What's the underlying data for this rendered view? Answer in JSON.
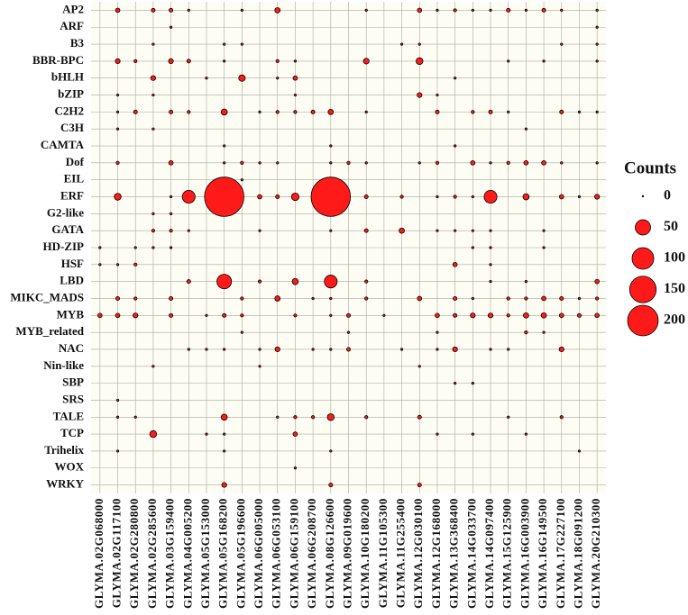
{
  "chart_data": {
    "type": "bubble",
    "x": [
      "GLYMA.02G068000",
      "GLYMA.02G117100",
      "GLYMA.02G280800",
      "GLYMA.02G285600",
      "GLYMA.03G159400",
      "GLYMA.04G005200",
      "GLYMA.05G153000",
      "GLYMA.05G168200",
      "GLYMA.05G196600",
      "GLYMA.06G005000",
      "GLYMA.06G053100",
      "GLYMA.06G159100",
      "GLYMA.06G208700",
      "GLYMA.08G126600",
      "GLYMA.09G019600",
      "GLYMA.10G180200",
      "GLYMA.11G105300",
      "GLYMA.11G255400",
      "GLYMA.12G030100",
      "GLYMA.12G168000",
      "GLYMA.13G368400",
      "GLYMA.14G033700",
      "GLYMA.14G097400",
      "GLYMA.15G125900",
      "GLYMA.16G003900",
      "GLYMA.16G149500",
      "GLYMA.17G227100",
      "GLYMA.18G091200",
      "GLYMA.20G210300"
    ],
    "categories": [
      "AP2",
      "ARF",
      "B3",
      "BBR-BPC",
      "bHLH",
      "bZIP",
      "C2H2",
      "C3H",
      "CAMTA",
      "Dof",
      "EIL",
      "ERF",
      "G2-like",
      "GATA",
      "HD-ZIP",
      "HSF",
      "LBD",
      "MIKC_MADS",
      "MYB",
      "MYB_related",
      "NAC",
      "Nin-like",
      "SBP",
      "SRS",
      "TALE",
      "TCP",
      "Trihelix",
      "WOX",
      "WRKY"
    ],
    "values": [
      [
        null,
        4,
        null,
        3,
        3,
        1,
        null,
        null,
        1,
        null,
        6,
        null,
        null,
        null,
        null,
        1,
        null,
        null,
        4,
        1,
        2,
        1,
        1,
        3,
        1,
        3,
        1,
        null,
        1
      ],
      [
        null,
        null,
        null,
        null,
        1,
        null,
        null,
        null,
        null,
        null,
        null,
        null,
        null,
        null,
        null,
        null,
        null,
        null,
        null,
        null,
        null,
        null,
        null,
        null,
        null,
        null,
        null,
        null,
        1
      ],
      [
        null,
        null,
        null,
        1,
        null,
        null,
        null,
        1,
        1,
        null,
        null,
        null,
        null,
        null,
        null,
        null,
        null,
        1,
        1,
        null,
        null,
        null,
        null,
        null,
        null,
        null,
        1,
        null,
        1
      ],
      [
        null,
        5,
        2,
        null,
        5,
        3,
        null,
        1,
        null,
        null,
        2,
        1,
        null,
        null,
        null,
        7,
        null,
        null,
        10,
        null,
        null,
        null,
        null,
        1,
        null,
        1,
        null,
        null,
        1
      ],
      [
        null,
        null,
        null,
        5,
        null,
        null,
        1,
        null,
        9,
        null,
        1,
        4,
        null,
        null,
        null,
        null,
        null,
        null,
        null,
        null,
        1,
        null,
        null,
        null,
        null,
        null,
        null,
        null,
        null
      ],
      [
        null,
        1,
        null,
        1,
        null,
        null,
        null,
        null,
        null,
        null,
        null,
        1,
        null,
        null,
        null,
        null,
        null,
        null,
        5,
        1,
        null,
        null,
        null,
        null,
        null,
        null,
        null,
        null,
        null
      ],
      [
        null,
        1,
        3,
        null,
        3,
        2,
        null,
        8,
        null,
        1,
        2,
        2,
        3,
        6,
        null,
        1,
        null,
        null,
        null,
        3,
        null,
        2,
        3,
        1,
        null,
        null,
        3,
        1,
        1
      ],
      [
        null,
        1,
        null,
        1,
        null,
        null,
        null,
        null,
        null,
        null,
        null,
        null,
        null,
        null,
        null,
        null,
        null,
        null,
        null,
        null,
        null,
        null,
        null,
        null,
        1,
        null,
        null,
        null,
        null
      ],
      [
        null,
        null,
        null,
        null,
        null,
        null,
        null,
        1,
        null,
        null,
        null,
        null,
        null,
        1,
        null,
        null,
        null,
        null,
        null,
        null,
        1,
        null,
        null,
        null,
        null,
        null,
        null,
        null,
        null
      ],
      [
        null,
        2,
        null,
        null,
        4,
        null,
        null,
        1,
        2,
        1,
        1,
        null,
        null,
        1,
        2,
        1,
        null,
        null,
        1,
        2,
        null,
        4,
        1,
        2,
        4,
        4,
        1,
        null,
        1
      ],
      [
        null,
        null,
        null,
        null,
        null,
        null,
        null,
        null,
        1,
        null,
        null,
        null,
        null,
        null,
        null,
        null,
        null,
        null,
        null,
        null,
        null,
        null,
        null,
        null,
        null,
        null,
        null,
        null,
        null
      ],
      [
        null,
        10,
        null,
        null,
        1,
        35,
        null,
        330,
        null,
        4,
        3,
        12,
        null,
        330,
        null,
        3,
        null,
        2,
        null,
        1,
        2,
        1,
        35,
        null,
        8,
        null,
        4,
        1,
        5
      ],
      [
        null,
        null,
        null,
        1,
        1,
        null,
        null,
        null,
        null,
        null,
        null,
        null,
        null,
        null,
        null,
        null,
        null,
        null,
        null,
        null,
        null,
        null,
        null,
        null,
        null,
        null,
        null,
        null,
        null
      ],
      [
        null,
        null,
        null,
        2,
        2,
        1,
        null,
        null,
        null,
        1,
        null,
        null,
        null,
        1,
        null,
        3,
        null,
        6,
        null,
        1,
        1,
        1,
        1,
        null,
        null,
        1,
        null,
        null,
        null
      ],
      [
        1,
        null,
        1,
        1,
        1,
        null,
        null,
        null,
        null,
        null,
        null,
        null,
        null,
        null,
        null,
        null,
        null,
        null,
        null,
        null,
        null,
        1,
        1,
        null,
        null,
        1,
        null,
        null,
        null
      ],
      [
        1,
        1,
        2,
        null,
        null,
        null,
        null,
        null,
        null,
        null,
        null,
        null,
        null,
        null,
        null,
        null,
        null,
        null,
        null,
        null,
        4,
        null,
        1,
        null,
        null,
        null,
        null,
        null,
        null
      ],
      [
        null,
        null,
        null,
        null,
        null,
        3,
        null,
        45,
        null,
        2,
        null,
        8,
        null,
        35,
        null,
        2,
        null,
        null,
        null,
        null,
        null,
        null,
        1,
        null,
        1,
        null,
        null,
        null,
        4
      ],
      [
        null,
        3,
        2,
        null,
        3,
        null,
        null,
        null,
        2,
        null,
        6,
        null,
        1,
        1,
        null,
        2,
        null,
        null,
        4,
        null,
        3,
        1,
        null,
        2,
        2,
        4,
        3,
        1,
        2
      ],
      [
        4,
        4,
        5,
        null,
        3,
        null,
        1,
        3,
        2,
        null,
        null,
        2,
        null,
        1,
        3,
        null,
        1,
        null,
        null,
        4,
        3,
        5,
        5,
        2,
        6,
        6,
        4,
        3,
        4
      ],
      [
        null,
        null,
        null,
        null,
        null,
        null,
        null,
        null,
        1,
        null,
        null,
        null,
        null,
        null,
        1,
        null,
        null,
        null,
        null,
        1,
        null,
        null,
        null,
        null,
        2,
        1,
        null,
        null,
        null
      ],
      [
        null,
        null,
        null,
        null,
        null,
        1,
        1,
        1,
        null,
        1,
        5,
        null,
        1,
        1,
        3,
        null,
        null,
        1,
        null,
        1,
        5,
        null,
        1,
        1,
        null,
        null,
        5,
        null,
        null
      ],
      [
        null,
        null,
        null,
        1,
        null,
        null,
        null,
        null,
        null,
        1,
        null,
        null,
        null,
        null,
        null,
        null,
        null,
        null,
        1,
        null,
        null,
        null,
        null,
        null,
        null,
        null,
        null,
        null,
        null
      ],
      [
        null,
        null,
        null,
        null,
        null,
        null,
        null,
        null,
        null,
        null,
        null,
        null,
        null,
        null,
        null,
        null,
        null,
        null,
        null,
        null,
        1,
        1,
        null,
        null,
        null,
        null,
        null,
        null,
        null
      ],
      [
        null,
        1,
        null,
        null,
        null,
        null,
        null,
        null,
        null,
        null,
        null,
        null,
        null,
        null,
        null,
        null,
        null,
        null,
        null,
        null,
        null,
        null,
        null,
        null,
        null,
        null,
        null,
        null,
        null
      ],
      [
        null,
        1,
        1,
        null,
        null,
        null,
        null,
        8,
        null,
        null,
        1,
        2,
        2,
        10,
        null,
        2,
        null,
        null,
        3,
        null,
        null,
        null,
        null,
        1,
        null,
        null,
        2,
        null,
        null
      ],
      [
        null,
        null,
        null,
        10,
        null,
        null,
        1,
        1,
        null,
        null,
        null,
        4,
        null,
        null,
        null,
        null,
        null,
        null,
        null,
        1,
        null,
        1,
        null,
        null,
        1,
        null,
        null,
        null,
        null
      ],
      [
        null,
        1,
        null,
        null,
        null,
        null,
        null,
        1,
        null,
        null,
        null,
        null,
        null,
        1,
        null,
        null,
        null,
        null,
        null,
        null,
        null,
        null,
        null,
        null,
        null,
        null,
        null,
        1,
        null
      ],
      [
        null,
        null,
        null,
        null,
        null,
        null,
        null,
        null,
        null,
        null,
        null,
        1,
        null,
        null,
        null,
        null,
        null,
        null,
        null,
        null,
        null,
        null,
        null,
        null,
        null,
        null,
        null,
        null,
        null
      ],
      [
        null,
        null,
        null,
        null,
        null,
        null,
        null,
        5,
        null,
        null,
        null,
        null,
        null,
        3,
        null,
        null,
        null,
        null,
        3,
        null,
        null,
        null,
        null,
        null,
        null,
        null,
        null,
        null,
        null
      ]
    ],
    "color": "#ff1a1a",
    "legend_title": "Counts",
    "size_legend": [
      0,
      50,
      100,
      150,
      200
    ],
    "grid": true
  }
}
